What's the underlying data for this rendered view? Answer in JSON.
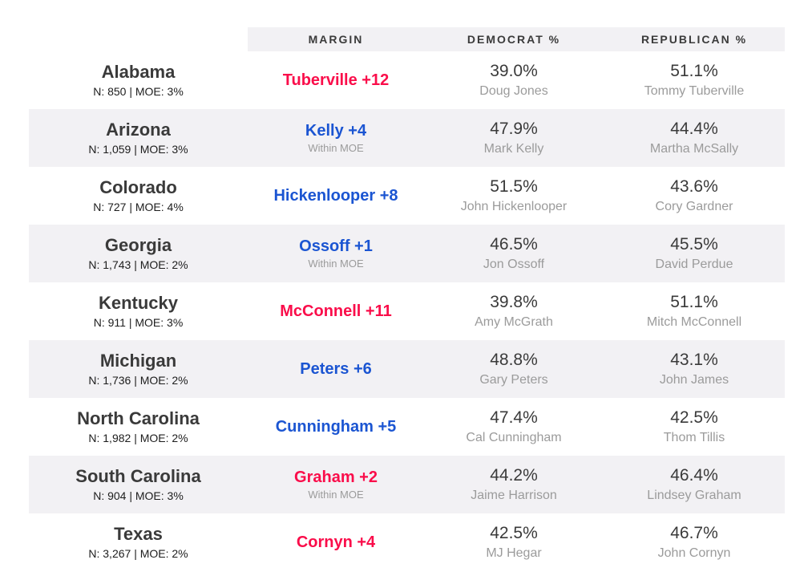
{
  "colors": {
    "dem_blue": "#1B55D2",
    "rep_red": "#FA0D4A",
    "band_gray": "#F2F1F4",
    "dark_text": "#3A3A3A",
    "muted_text": "#9B9B9B"
  },
  "chart_data": {
    "type": "table",
    "header_columns": [
      "MARGIN",
      "DEMOCRAT %",
      "REPUBLICAN %"
    ],
    "rows": [
      {
        "state": "Alabama",
        "sample": "N: 850 | MOE: 3%",
        "margin": "Tuberville +12",
        "margin_party": "rep",
        "within_moe": "",
        "dem_pct": "39.0%",
        "dem_name": "Doug Jones",
        "rep_pct": "51.1%",
        "rep_name": "Tommy Tuberville",
        "shaded": false
      },
      {
        "state": "Arizona",
        "sample": "N: 1,059 | MOE: 3%",
        "margin": "Kelly +4",
        "margin_party": "dem",
        "within_moe": "Within MOE",
        "dem_pct": "47.9%",
        "dem_name": "Mark Kelly",
        "rep_pct": "44.4%",
        "rep_name": "Martha McSally",
        "shaded": true
      },
      {
        "state": "Colorado",
        "sample": "N: 727 | MOE: 4%",
        "margin": "Hickenlooper +8",
        "margin_party": "dem",
        "within_moe": "",
        "dem_pct": "51.5%",
        "dem_name": "John Hickenlooper",
        "rep_pct": "43.6%",
        "rep_name": "Cory Gardner",
        "shaded": false
      },
      {
        "state": "Georgia",
        "sample": "N: 1,743 | MOE: 2%",
        "margin": "Ossoff +1",
        "margin_party": "dem",
        "within_moe": "Within MOE",
        "dem_pct": "46.5%",
        "dem_name": "Jon Ossoff",
        "rep_pct": "45.5%",
        "rep_name": "David Perdue",
        "shaded": true
      },
      {
        "state": "Kentucky",
        "sample": "N: 911 | MOE: 3%",
        "margin": "McConnell +11",
        "margin_party": "rep",
        "within_moe": "",
        "dem_pct": "39.8%",
        "dem_name": "Amy McGrath",
        "rep_pct": "51.1%",
        "rep_name": "Mitch McConnell",
        "shaded": false
      },
      {
        "state": "Michigan",
        "sample": "N: 1,736 | MOE: 2%",
        "margin": "Peters +6",
        "margin_party": "dem",
        "within_moe": "",
        "dem_pct": "48.8%",
        "dem_name": "Gary Peters",
        "rep_pct": "43.1%",
        "rep_name": "John James",
        "shaded": true
      },
      {
        "state": "North Carolina",
        "sample": "N: 1,982 | MOE: 2%",
        "margin": "Cunningham +5",
        "margin_party": "dem",
        "within_moe": "",
        "dem_pct": "47.4%",
        "dem_name": "Cal Cunningham",
        "rep_pct": "42.5%",
        "rep_name": "Thom Tillis",
        "shaded": false
      },
      {
        "state": "South Carolina",
        "sample": "N: 904 | MOE: 3%",
        "margin": "Graham +2",
        "margin_party": "rep",
        "within_moe": "Within MOE",
        "dem_pct": "44.2%",
        "dem_name": "Jaime Harrison",
        "rep_pct": "46.4%",
        "rep_name": "Lindsey Graham",
        "shaded": true
      },
      {
        "state": "Texas",
        "sample": "N: 3,267 | MOE: 2%",
        "margin": "Cornyn +4",
        "margin_party": "rep",
        "within_moe": "",
        "dem_pct": "42.5%",
        "dem_name": "MJ Hegar",
        "rep_pct": "46.7%",
        "rep_name": "John Cornyn",
        "shaded": false
      }
    ]
  }
}
